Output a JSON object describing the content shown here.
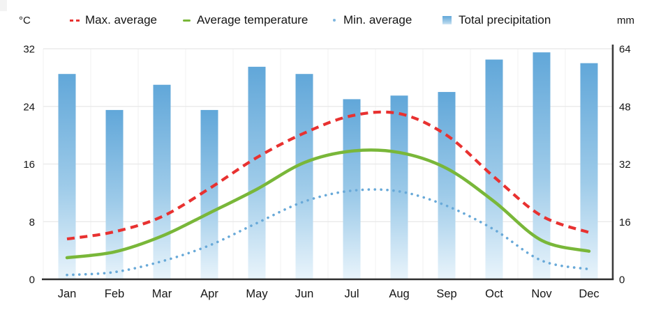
{
  "axes": {
    "left_unit": "°C",
    "right_unit": "mm"
  },
  "legend": [
    {
      "key": "max-average",
      "label": "Max. average",
      "marker": "dashed-line",
      "color": "#e83130"
    },
    {
      "key": "average-temperature",
      "label": "Average temperature",
      "marker": "solid-line",
      "color": "#79b739"
    },
    {
      "key": "min-average",
      "label": "Min. average",
      "marker": "dotted-line",
      "color": "#68a9d8"
    },
    {
      "key": "total-precipitation",
      "label": "Total precipitation",
      "marker": "gradient-bar",
      "color": "#66aadb"
    }
  ],
  "chart_data": {
    "type": "combo-bar-line",
    "title": "",
    "categories": [
      "Jan",
      "Feb",
      "Mar",
      "Apr",
      "May",
      "Jun",
      "Jul",
      "Aug",
      "Sep",
      "Oct",
      "Nov",
      "Dec"
    ],
    "series": [
      {
        "key": "max-average",
        "name": "Max. average",
        "type": "line",
        "style": "dashed",
        "unit": "°C",
        "color": "#e83130",
        "values": [
          5.6,
          6.6,
          8.7,
          12.6,
          16.9,
          20.3,
          22.7,
          23.0,
          20.0,
          14.2,
          8.8,
          6.5
        ]
      },
      {
        "key": "average-temperature",
        "name": "Average temperature",
        "type": "line",
        "style": "solid",
        "unit": "°C",
        "color": "#79b739",
        "values": [
          3.0,
          3.8,
          6.0,
          9.2,
          12.5,
          16.2,
          17.8,
          17.6,
          15.4,
          10.8,
          5.4,
          3.9
        ]
      },
      {
        "key": "min-average",
        "name": "Min. average",
        "type": "line",
        "style": "dotted",
        "unit": "°C",
        "color": "#68a9d8",
        "values": [
          0.6,
          1.0,
          2.5,
          4.7,
          7.8,
          10.8,
          12.3,
          12.2,
          10.2,
          6.9,
          2.6,
          1.4
        ]
      },
      {
        "key": "total-precipitation",
        "name": "Total precipitation",
        "type": "bar",
        "unit": "mm",
        "color": "#66aadb",
        "values": [
          57,
          47,
          54,
          47,
          59,
          57,
          50,
          51,
          52,
          61,
          63,
          60
        ]
      }
    ],
    "y_left": {
      "label": "°C",
      "range": [
        0,
        32
      ],
      "ticks": [
        0,
        8,
        16,
        24,
        32
      ]
    },
    "y_right": {
      "label": "mm",
      "range": [
        0,
        64
      ],
      "ticks": [
        0,
        16,
        32,
        48,
        64
      ]
    },
    "grid": true,
    "legend_position": "top",
    "colors": {
      "bar_gradient_top": "#61a7d9",
      "bar_gradient_bottom": "#e9f4fb",
      "gridline": "#e8e8e8",
      "axis_line": "#2d2d2d",
      "text": "#161616"
    }
  }
}
